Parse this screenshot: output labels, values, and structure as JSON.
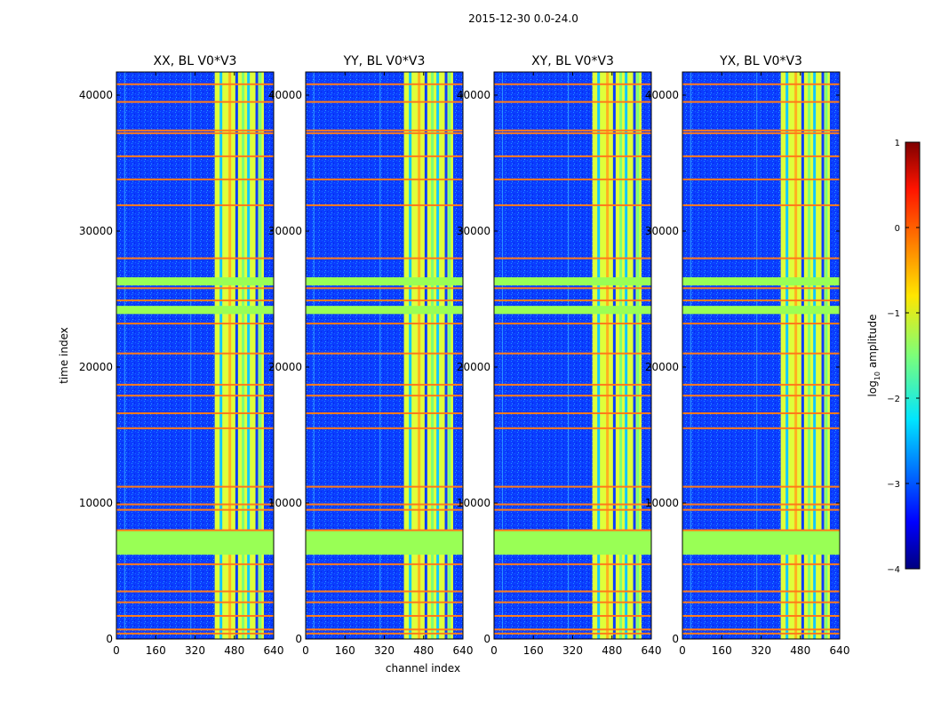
{
  "chart_data": {
    "type": "heatmap",
    "suptitle": "2015-12-30 0.0-24.0",
    "xlabel": "channel index",
    "ylabel": "time index",
    "xlim": [
      0,
      640
    ],
    "ylim": [
      0,
      41700
    ],
    "xticks": [
      0,
      160,
      320,
      480,
      640
    ],
    "yticks": [
      0,
      10000,
      20000,
      30000,
      40000
    ],
    "panels": [
      {
        "title": "XX, BL V0*V3"
      },
      {
        "title": "YY, BL V0*V3"
      },
      {
        "title": "XY, BL V0*V3"
      },
      {
        "title": "YX, BL V0*V3"
      }
    ],
    "colorbar": {
      "label": "log",
      "label_sub": "10",
      "label_rest": " amplitude",
      "range": [
        -4,
        1
      ],
      "ticks": [
        "1",
        "0",
        "−1",
        "−2",
        "−3",
        "−4"
      ],
      "colormap": "jet"
    },
    "features": {
      "bright_channel_band": [
        400,
        600
      ],
      "flagged_time_blocks": [
        [
          6200,
          8000
        ],
        [
          23900,
          24500
        ],
        [
          26000,
          26600
        ]
      ],
      "orange_time_lines": [
        400,
        700,
        1700,
        2700,
        3500,
        5500,
        8000,
        9500,
        9900,
        11200,
        15500,
        16600,
        17900,
        18700,
        21000,
        23200,
        24900,
        25800,
        28000,
        31900,
        33800,
        35500,
        37200,
        37400,
        39500,
        40800
      ]
    },
    "colors": {
      "background": "#0a3cff",
      "flag_block": "#99ff55",
      "bright_band": "#dfff3a",
      "flag_line": "#ff7a1a"
    }
  }
}
